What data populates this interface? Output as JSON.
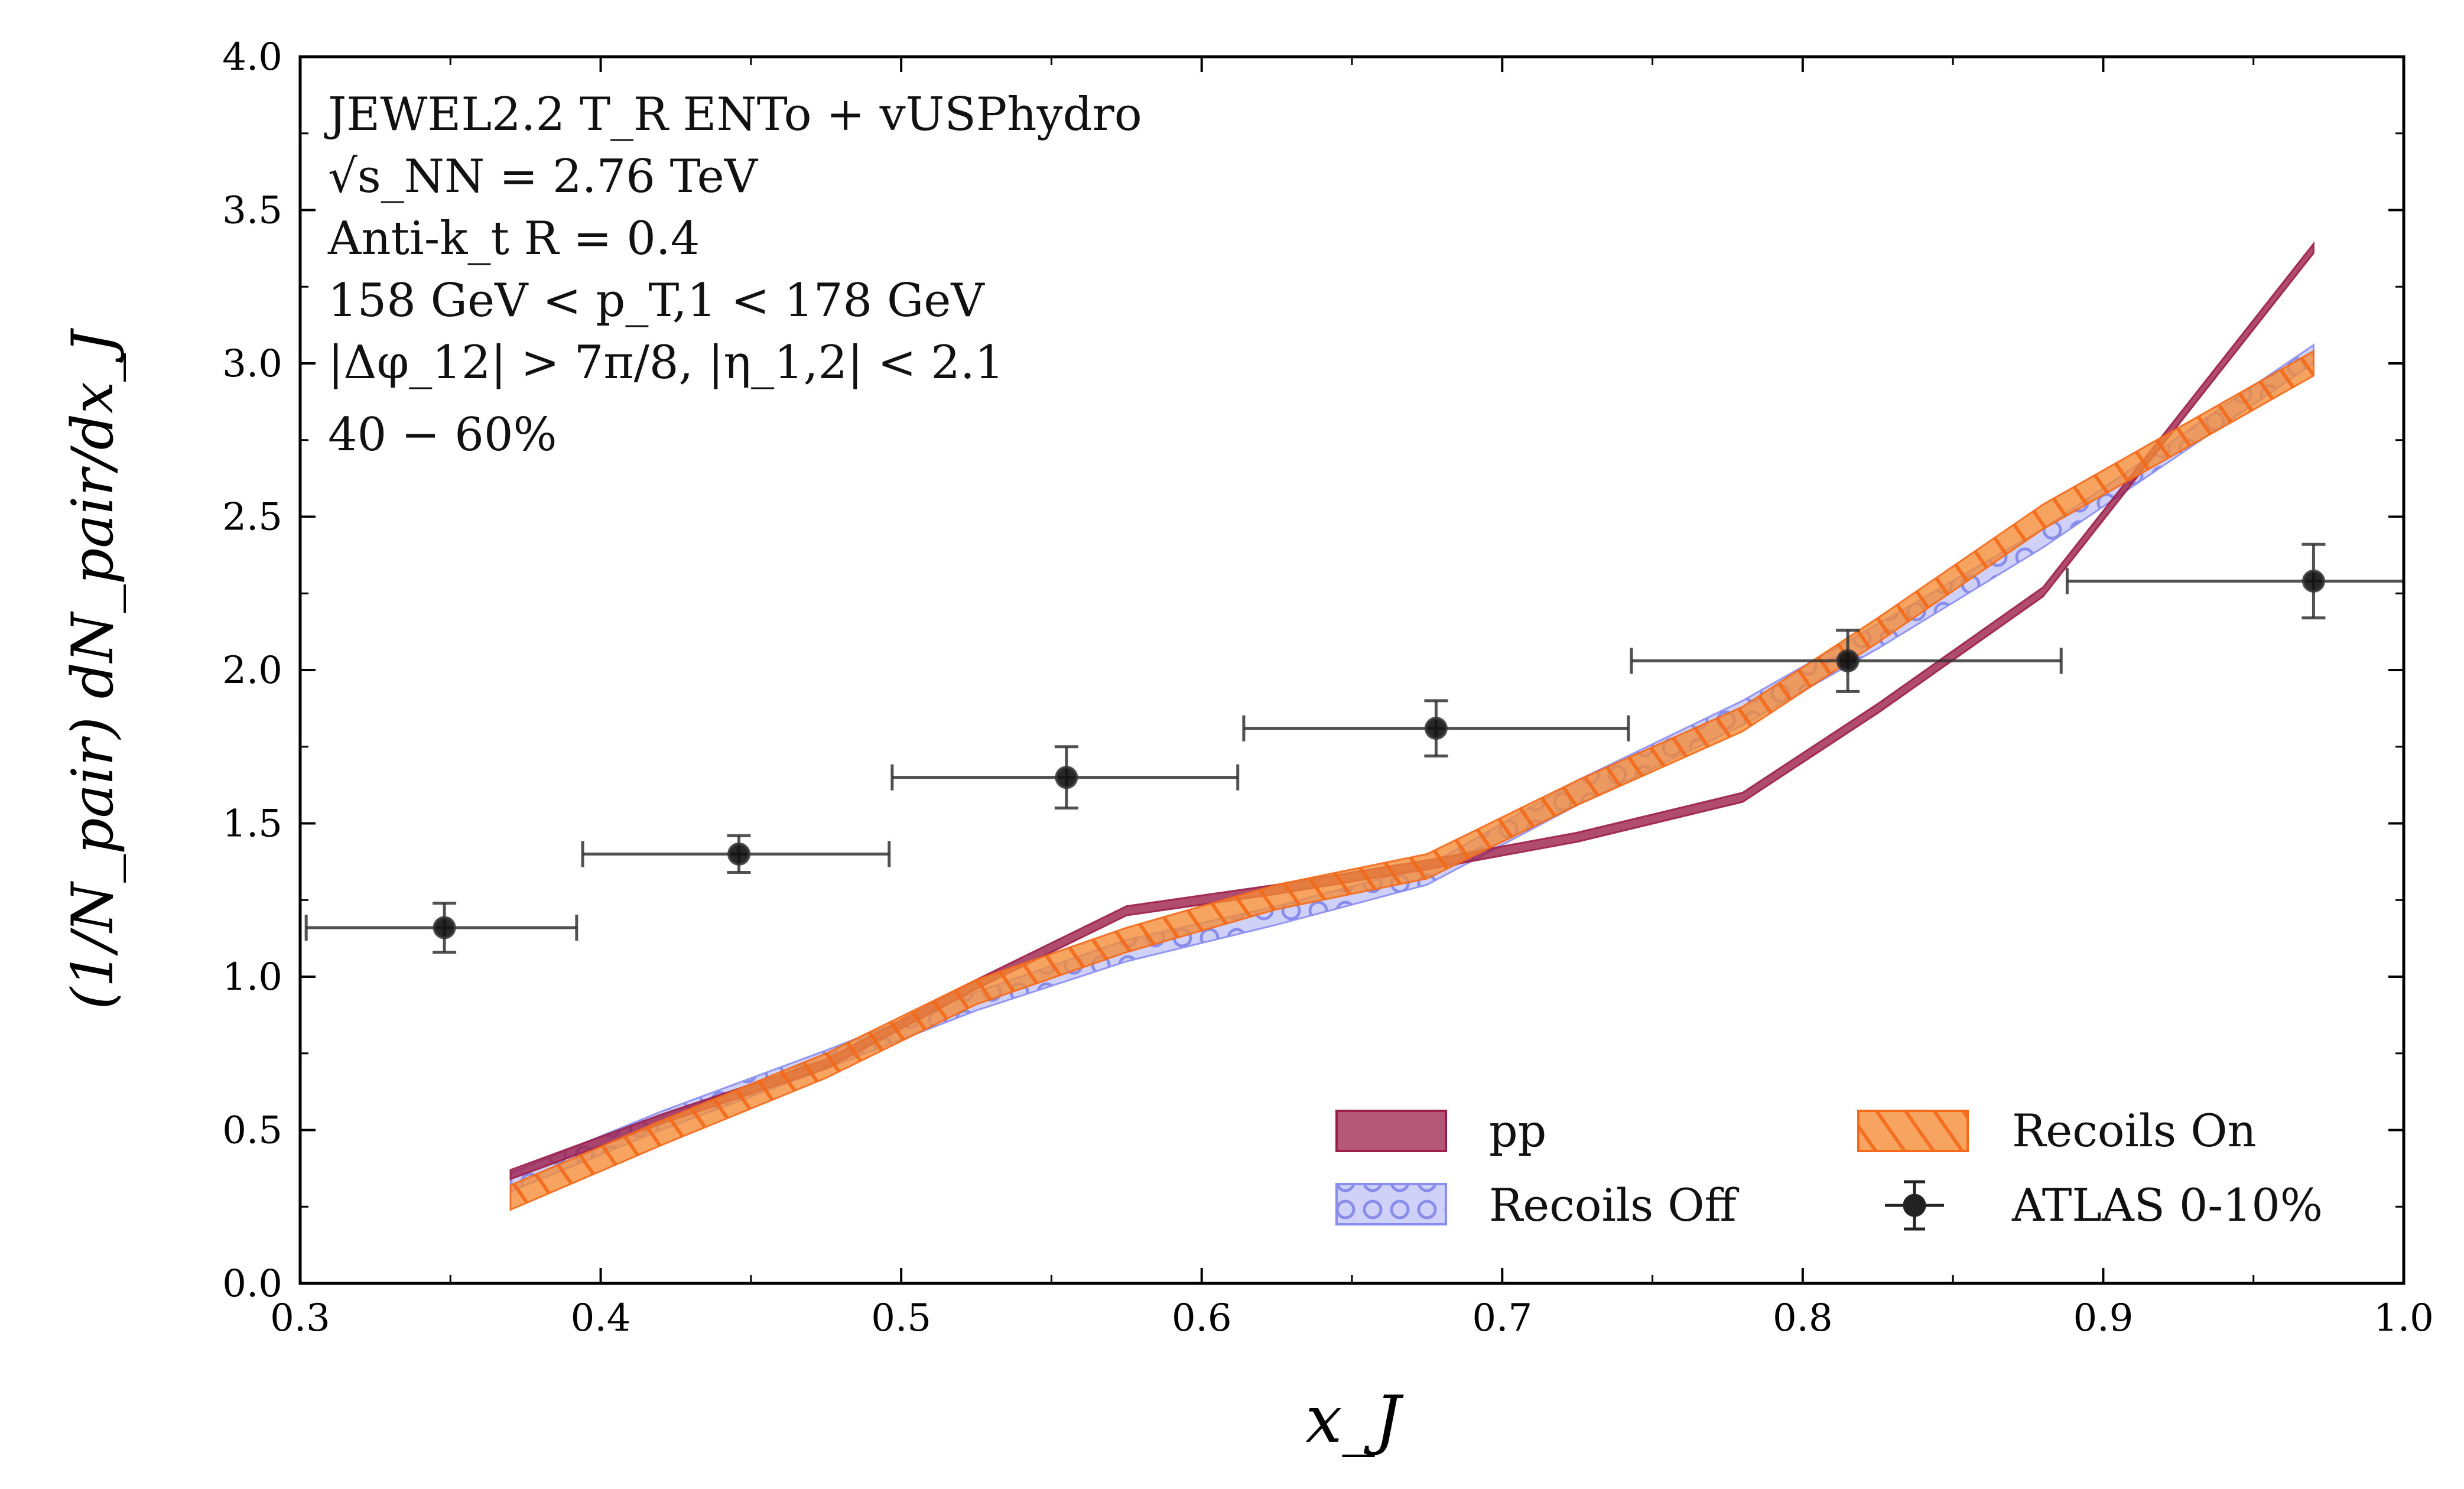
{
  "chart_data": {
    "type": "line",
    "xlabel": "x_J",
    "ylabel": "(1/N_pair) dN_pair/dx_J",
    "xlim": [
      0.3,
      1.0
    ],
    "ylim": [
      0.0,
      4.0
    ],
    "x_ticks": [
      "0.3",
      "0.4",
      "0.5",
      "0.6",
      "0.7",
      "0.8",
      "0.9",
      "1.0"
    ],
    "y_ticks": [
      "0.0",
      "0.5",
      "1.0",
      "1.5",
      "2.0",
      "2.5",
      "3.0",
      "3.5",
      "4.0"
    ],
    "grid": false,
    "legend_position": "bottom-right",
    "annotations": [
      "JEWEL2.2 T_R ENTo + vUSPhydro",
      "√s_NN = 2.76 TeV",
      "Anti-k_t R = 0.4",
      "158 GeV < p_T,1 < 178 GeV",
      "|Δφ_12| > 7π/8, |η_1,2| < 2.1",
      "40 − 60%"
    ],
    "series": [
      {
        "name": "pp",
        "kind": "band",
        "color": "#9c1f4a",
        "x": [
          0.37,
          0.42,
          0.475,
          0.525,
          0.575,
          0.625,
          0.675,
          0.725,
          0.78,
          0.825,
          0.88,
          0.97
        ],
        "lower": [
          0.34,
          0.52,
          0.7,
          0.96,
          1.2,
          1.27,
          1.35,
          1.44,
          1.57,
          1.86,
          2.24,
          3.36
        ],
        "upper": [
          0.37,
          0.55,
          0.73,
          0.99,
          1.23,
          1.3,
          1.38,
          1.47,
          1.6,
          1.89,
          2.27,
          3.39
        ]
      },
      {
        "name": "Recoils Off",
        "kind": "band",
        "color": "#6b6fe6",
        "x": [
          0.37,
          0.42,
          0.475,
          0.525,
          0.575,
          0.625,
          0.675,
          0.725,
          0.78,
          0.825,
          0.88,
          0.97
        ],
        "lower": [
          0.3,
          0.5,
          0.7,
          0.89,
          1.05,
          1.17,
          1.3,
          1.56,
          1.82,
          2.07,
          2.4,
          3.0
        ],
        "upper": [
          0.36,
          0.56,
          0.76,
          0.95,
          1.12,
          1.23,
          1.36,
          1.64,
          1.9,
          2.15,
          2.46,
          3.06
        ]
      },
      {
        "name": "Recoils On",
        "kind": "band",
        "color": "#f57f20",
        "x": [
          0.37,
          0.42,
          0.475,
          0.525,
          0.575,
          0.625,
          0.675,
          0.725,
          0.78,
          0.825,
          0.88,
          0.97
        ],
        "lower": [
          0.24,
          0.45,
          0.67,
          0.91,
          1.08,
          1.22,
          1.32,
          1.56,
          1.8,
          2.09,
          2.46,
          2.96
        ],
        "upper": [
          0.32,
          0.53,
          0.75,
          0.99,
          1.16,
          1.3,
          1.4,
          1.64,
          1.88,
          2.17,
          2.54,
          3.04
        ]
      },
      {
        "name": "ATLAS 0-10%",
        "kind": "errorbar",
        "color": "#111111",
        "x": [
          0.348,
          0.446,
          0.555,
          0.678,
          0.815,
          0.97
        ],
        "y": [
          1.16,
          1.4,
          1.65,
          1.81,
          2.03,
          2.29
        ],
        "xerr_low": [
          0.046,
          0.052,
          0.058,
          0.064,
          0.072,
          0.082
        ],
        "xerr_high": [
          0.044,
          0.05,
          0.057,
          0.064,
          0.071,
          0.03
        ],
        "yerr": [
          0.08,
          0.06,
          0.1,
          0.09,
          0.1,
          0.12
        ]
      }
    ]
  }
}
